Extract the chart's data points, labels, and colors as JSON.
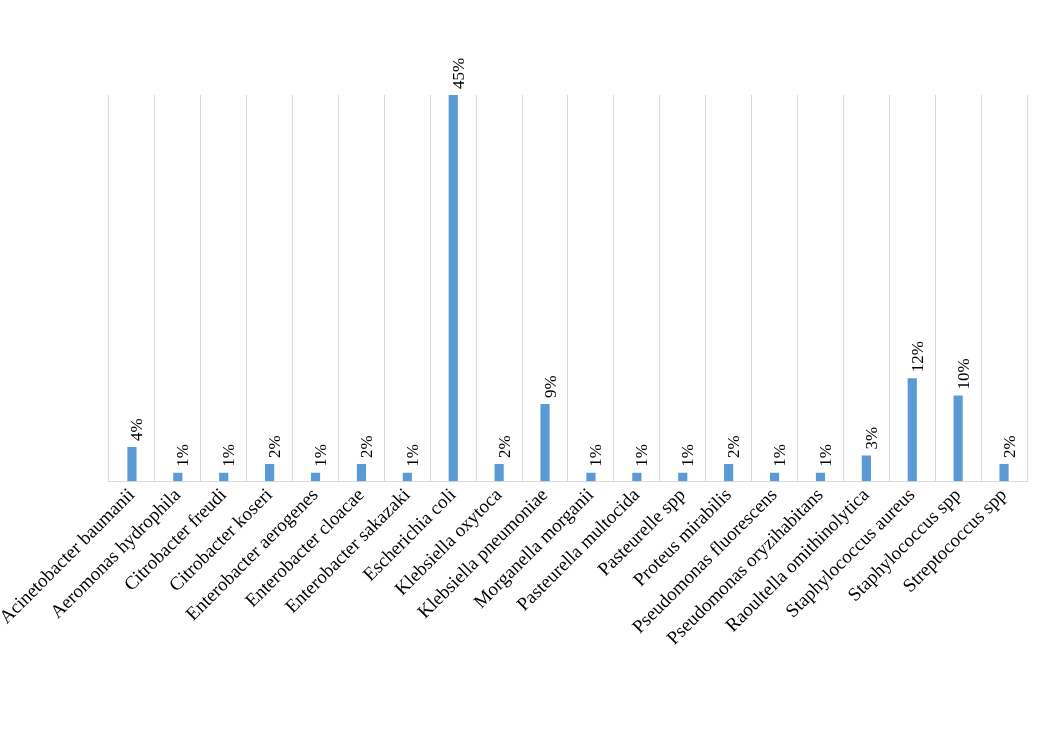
{
  "chart_data": {
    "type": "bar",
    "categories": [
      "Acinetobacter baumanii",
      "Aeromonas hydrophila",
      "Citrobacter freudi",
      "Citrobacter koseri",
      "Enterobacter aerogenes",
      "Enterobacter cloacae",
      "Enterobacter sakazaki",
      "Escherichia coli",
      "Klebsiella oxytoca",
      "Klebsiella pneumoniae",
      "Morganella morganii",
      "Pasteurella multocida",
      "Pasteurelle spp",
      "Proteus mirabilis",
      "Pseudomonas fluorescens",
      "Pseudomonas oryzihabitans",
      "Raoultella omithinolytica",
      "Staphylococcus aureus",
      "Staphylococcus spp",
      "Streptococcus spp"
    ],
    "values": [
      4,
      1,
      1,
      2,
      1,
      2,
      1,
      45,
      2,
      9,
      1,
      1,
      1,
      2,
      1,
      1,
      3,
      12,
      10,
      2
    ],
    "value_labels": [
      "4%",
      "1%",
      "1%",
      "2%",
      "1%",
      "2%",
      "1%",
      "45%",
      "2%",
      "9%",
      "1%",
      "1%",
      "1%",
      "2%",
      "1%",
      "1%",
      "3%",
      "12%",
      "10%",
      "2%"
    ],
    "color": "#5b9bd5",
    "grid": "x",
    "legend": false,
    "tick_labels": "x"
  }
}
